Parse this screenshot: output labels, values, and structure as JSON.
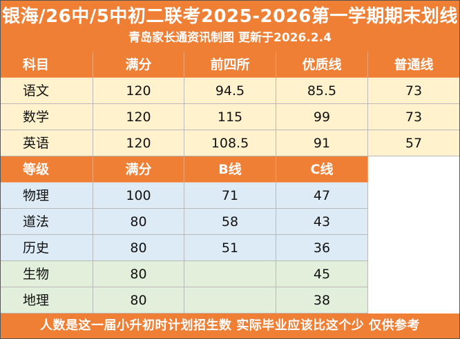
{
  "header": {
    "title": "银海/26中/5中初二联考2025-2026第一学期期末划线",
    "subtitle": "青岛家长通资讯制图 更新于2026.2.4"
  },
  "colors": {
    "accent_orange": "#ee7f35",
    "row_yellow": "#fff2cc",
    "row_blue": "#ddebf7",
    "row_green": "#e2efda"
  },
  "main_table": {
    "headers": [
      "科目",
      "满分",
      "前四所",
      "优质线",
      "普通线"
    ],
    "rows": [
      [
        "语文",
        "120",
        "94.5",
        "85.5",
        "73"
      ],
      [
        "数学",
        "120",
        "115",
        "99",
        "73"
      ],
      [
        "英语",
        "120",
        "108.5",
        "91",
        "57"
      ]
    ]
  },
  "grade_table": {
    "headers": [
      "等级",
      "满分",
      "B线",
      "C线"
    ],
    "rows": [
      [
        "物理",
        "100",
        "71",
        "47"
      ],
      [
        "道法",
        "80",
        "58",
        "43"
      ],
      [
        "历史",
        "80",
        "51",
        "36"
      ],
      [
        "生物",
        "80",
        "",
        "45"
      ],
      [
        "地理",
        "80",
        "",
        "38"
      ]
    ]
  },
  "footer": {
    "note": "人数是这一届小升初时计划招生数 实际毕业应该比这个少 仅供参考"
  }
}
